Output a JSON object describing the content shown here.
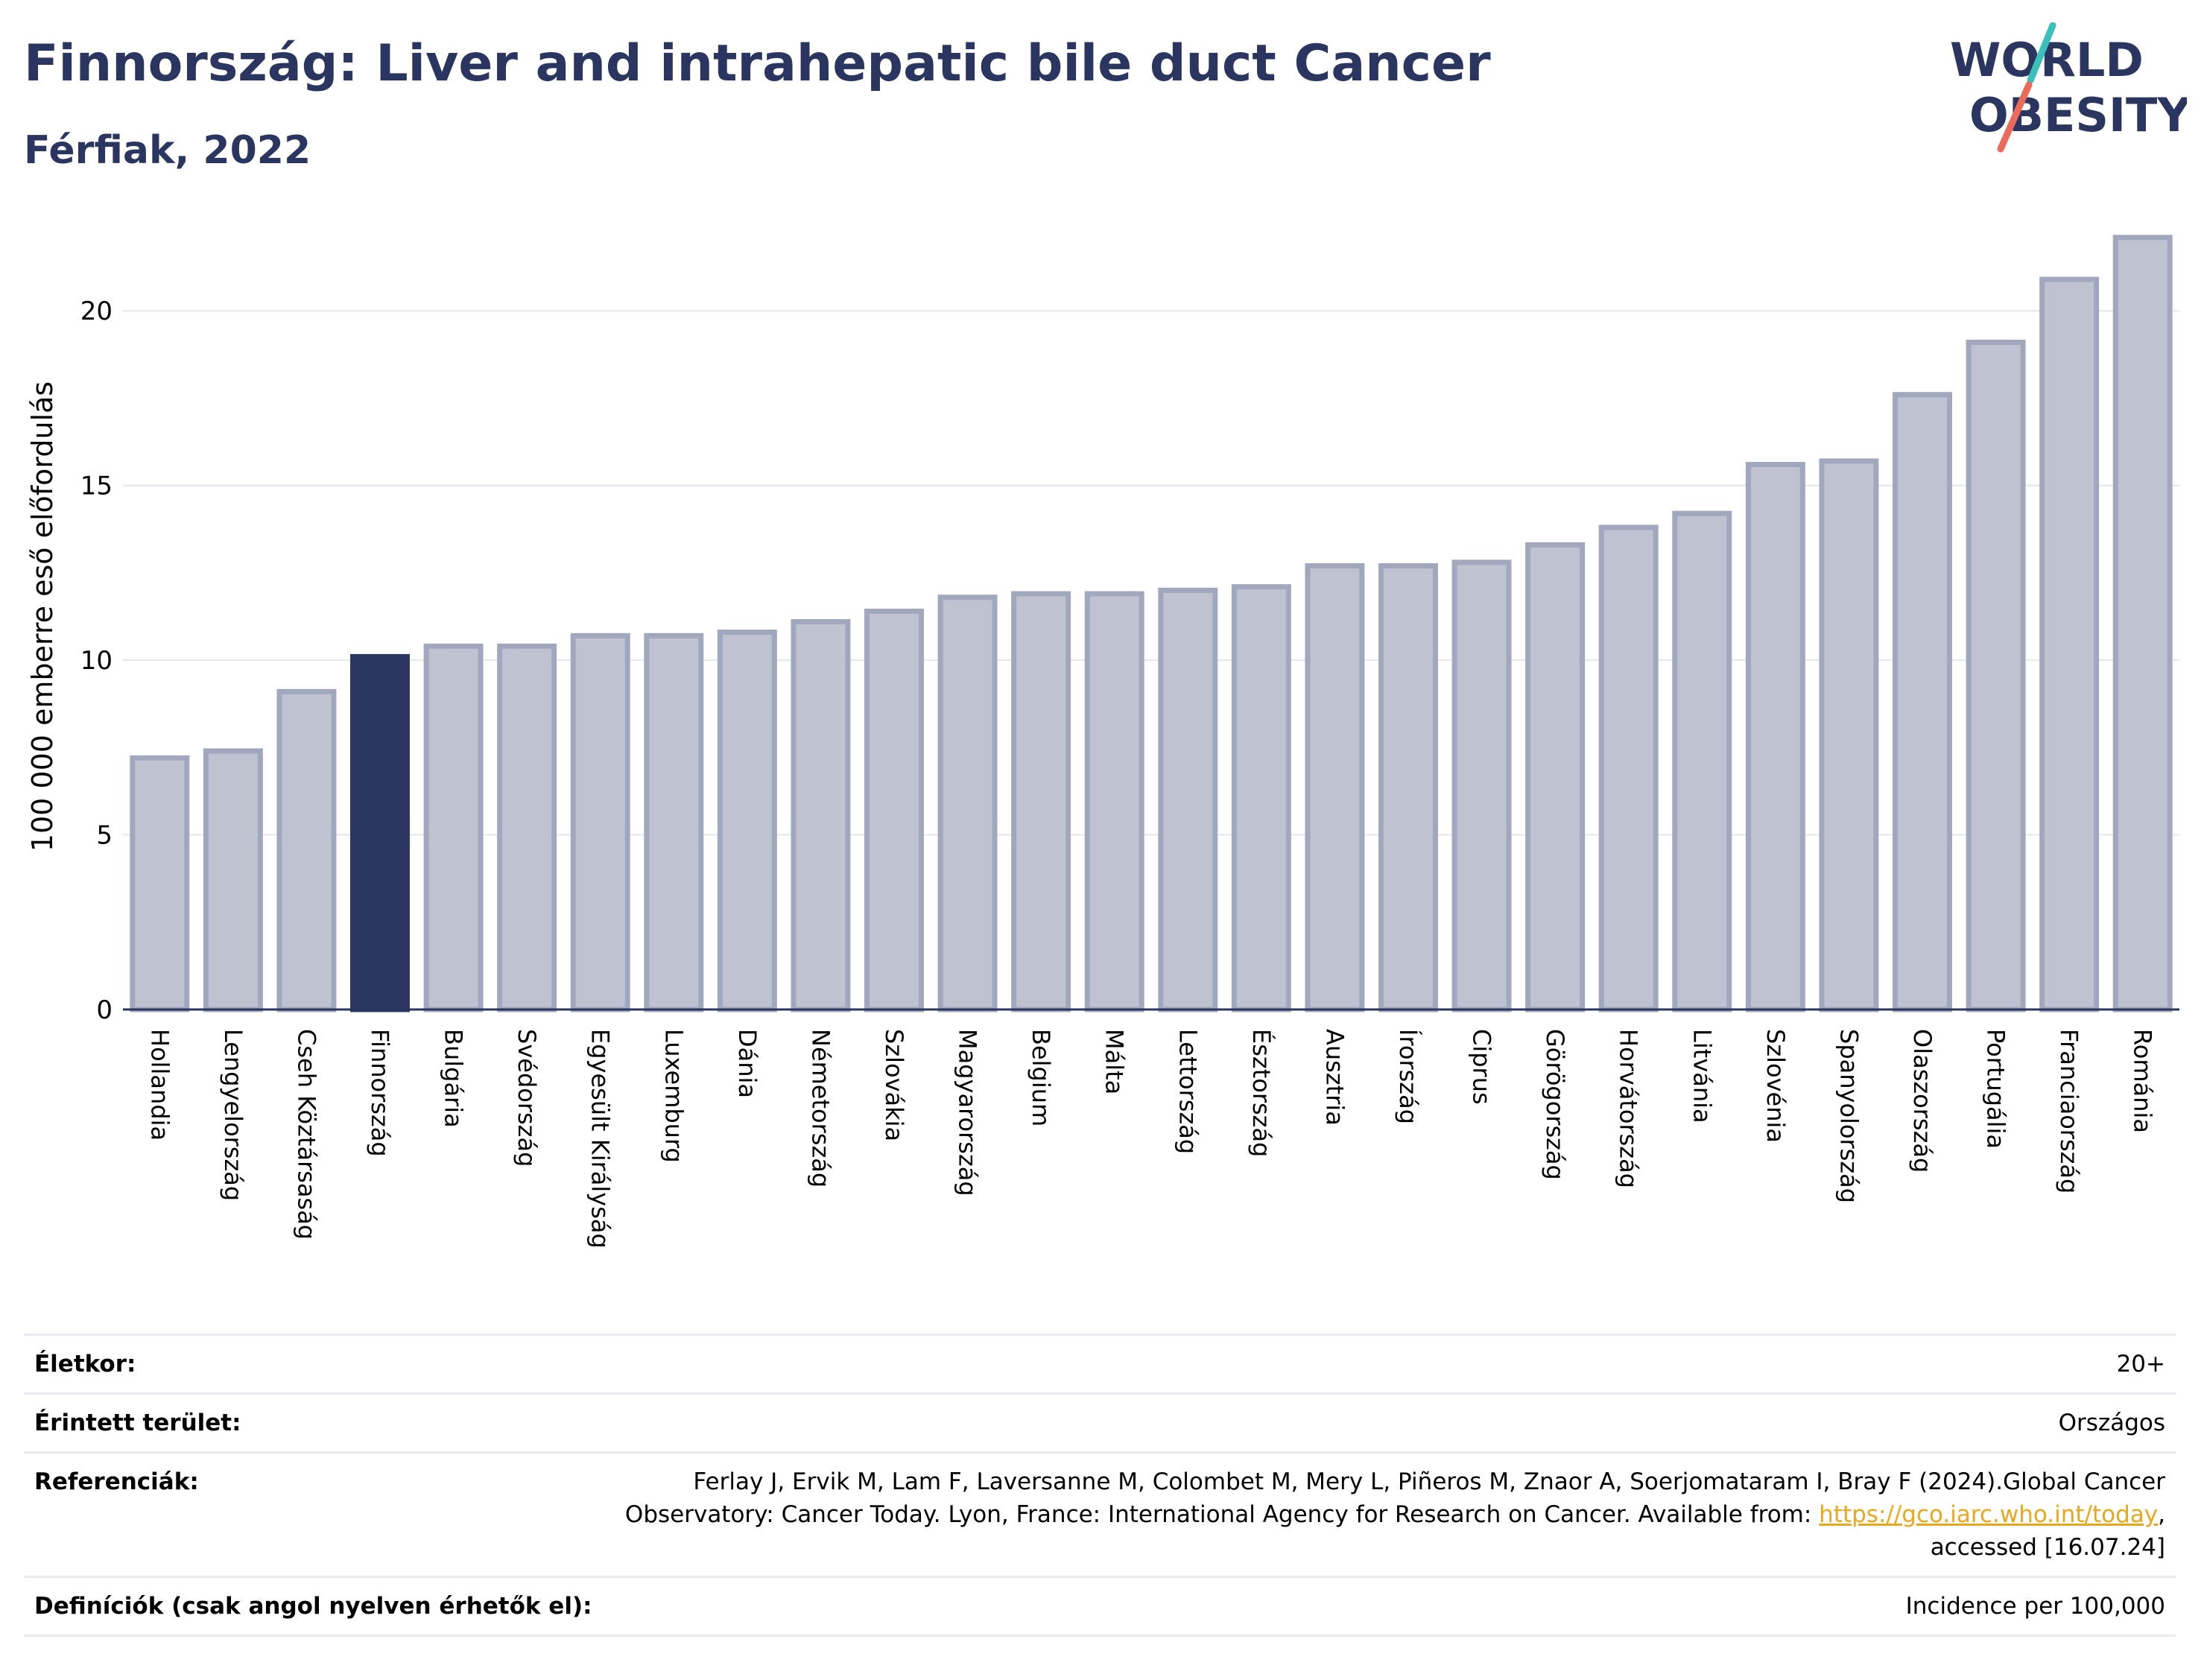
{
  "header": {
    "title": "Finnország: Liver and intrahepatic bile duct Cancer",
    "subtitle": "Férfiak, 2022"
  },
  "logo": {
    "line1": "WORLD",
    "line2": "OBESITY",
    "slash_colors": [
      "#3bbfb8",
      "#ea6a5c"
    ],
    "text_color": "#2a3660"
  },
  "chart_data": {
    "type": "bar",
    "ylabel": "100 000 emberre eső előfordulás",
    "ylim": [
      0,
      22.5
    ],
    "yticks": [
      0,
      5,
      10,
      15,
      20
    ],
    "grid": true,
    "categories": [
      "Hollandia",
      "Lengyelország",
      "Cseh Köztársaság",
      "Finnország",
      "Bulgária",
      "Svédország",
      "Egyesült Királyság",
      "Luxemburg",
      "Dánia",
      "Németország",
      "Szlovákia",
      "Magyarország",
      "Belgium",
      "Málta",
      "Lettország",
      "Észtország",
      "Ausztria",
      "Írország",
      "Ciprus",
      "Görögország",
      "Horvátország",
      "Litvánia",
      "Szlovénia",
      "Spanyolország",
      "Olaszország",
      "Portugália",
      "Franciaország",
      "Románia"
    ],
    "values": [
      7.2,
      7.4,
      9.1,
      10.1,
      10.4,
      10.4,
      10.7,
      10.7,
      10.8,
      11.1,
      11.4,
      11.8,
      11.9,
      11.9,
      12.0,
      12.1,
      12.7,
      12.7,
      12.8,
      13.3,
      13.8,
      14.2,
      15.6,
      15.7,
      17.6,
      19.1,
      20.9,
      22.1
    ],
    "highlight": "Finnország",
    "colors": {
      "bar": "#bfc2d0",
      "bar_border": "#a1a8bd",
      "highlight": "#2a3660"
    }
  },
  "meta": {
    "age_label": "Életkor:",
    "age_value": "20+",
    "area_label": "Érintett terület:",
    "area_value": "Országos",
    "ref_label": "Referenciák:",
    "ref_text_1": "Ferlay J, Ervik M, Lam F, Laversanne M, Colombet M, Mery L, Piñeros M, Znaor A, Soerjomataram I, Bray F (2024).Global Cancer Observatory: Cancer Today. Lyon, France: International Agency for Research on Cancer. Available from: ",
    "ref_link": "https://gco.iarc.who.int/today",
    "ref_text_2": ", accessed [16.07.24]",
    "def_label": "Definíciók (csak angol nyelven érhetők el):",
    "def_value": "Incidence per 100,000"
  }
}
